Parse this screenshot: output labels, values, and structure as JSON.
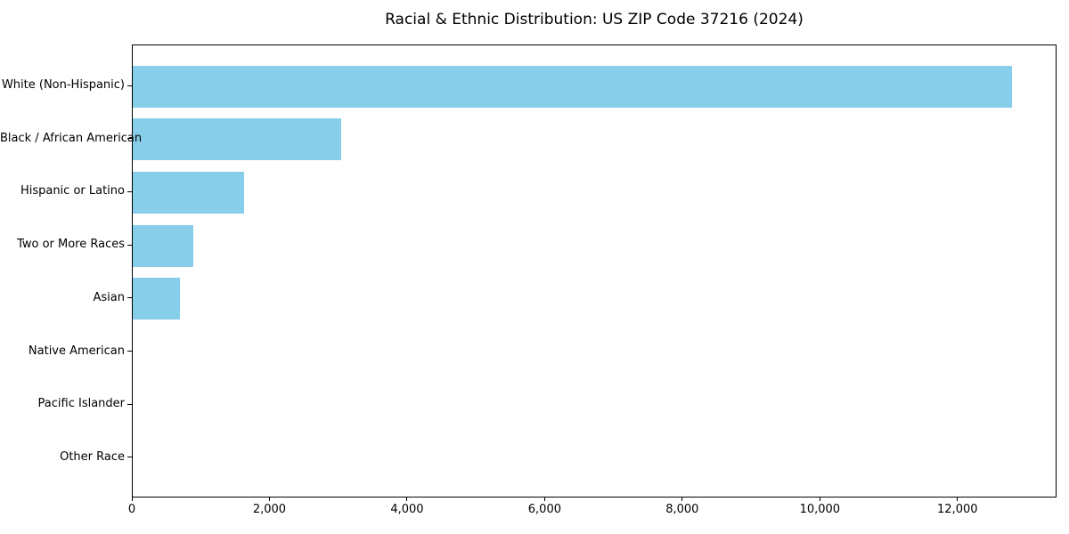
{
  "chart_data": {
    "type": "bar",
    "orientation": "horizontal",
    "title": "Racial & Ethnic Distribution: US ZIP Code 37216 (2024)",
    "xlabel": "",
    "ylabel": "",
    "categories": [
      "White (Non-Hispanic)",
      "Black / African American",
      "Hispanic or Latino",
      "Two or More Races",
      "Asian",
      "Native American",
      "Pacific Islander",
      "Other Race"
    ],
    "values": [
      12800,
      3030,
      1620,
      880,
      690,
      0,
      0,
      0
    ],
    "xlim": [
      0,
      13440
    ],
    "x_ticks": [
      0,
      2000,
      4000,
      6000,
      8000,
      10000,
      12000
    ],
    "x_tick_labels": [
      "0",
      "2,000",
      "4,000",
      "6,000",
      "8,000",
      "10,000",
      "12,000"
    ],
    "bar_color": "#87CEEB",
    "axis_color": "#000000",
    "text_color": "#000000",
    "grid": false,
    "legend": false,
    "y_axis_inverted": true,
    "bar_height_ratio": 0.8
  }
}
